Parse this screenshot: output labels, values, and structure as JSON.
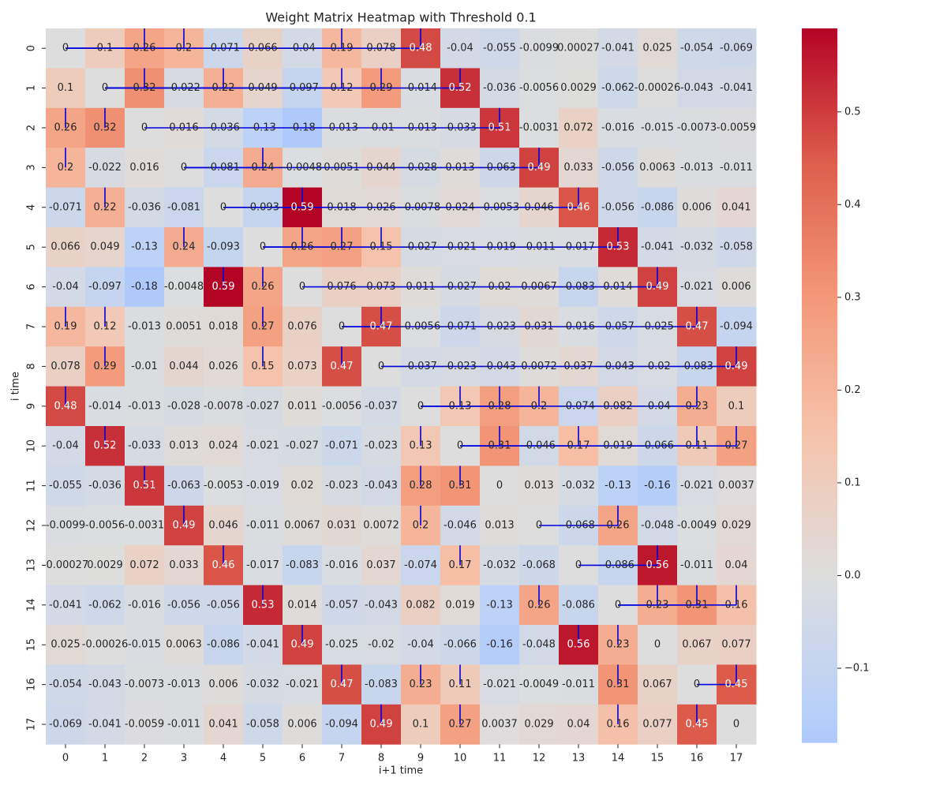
{
  "chart_data": {
    "type": "heatmap",
    "title": "Weight Matrix Heatmap with Threshold 0.1",
    "xlabel": "i+1 time",
    "ylabel": "i time",
    "x_ticks": [
      "0",
      "1",
      "2",
      "3",
      "4",
      "5",
      "6",
      "7",
      "8",
      "9",
      "10",
      "11",
      "12",
      "13",
      "14",
      "15",
      "16",
      "17"
    ],
    "y_ticks": [
      "0",
      "1",
      "2",
      "3",
      "4",
      "5",
      "6",
      "7",
      "8",
      "9",
      "10",
      "11",
      "12",
      "13",
      "14",
      "15",
      "16",
      "17"
    ],
    "colormap": "coolwarm",
    "color_range": [
      -0.18,
      0.59
    ],
    "colorbar_ticks": [
      {
        "value": -0.1,
        "label": "−0.1"
      },
      {
        "value": 0.0,
        "label": "0.0"
      },
      {
        "value": 0.1,
        "label": "0.1"
      },
      {
        "value": 0.2,
        "label": "0.2"
      },
      {
        "value": 0.3,
        "label": "0.3"
      },
      {
        "value": 0.4,
        "label": "0.4"
      },
      {
        "value": 0.5,
        "label": "0.5"
      }
    ],
    "cells": [
      [
        "0",
        "0.1",
        "0.26",
        "0.2",
        "-0.071",
        "0.066",
        "-0.04",
        "0.19",
        "0.078",
        "0.48",
        "-0.04",
        "-0.055",
        "-0.0099",
        "0.00027",
        "-0.041",
        "0.025",
        "-0.054",
        "-0.069"
      ],
      [
        "0.1",
        "0",
        "0.32",
        "-0.022",
        "0.22",
        "0.049",
        "-0.097",
        "0.12",
        "0.29",
        "-0.014",
        "0.52",
        "-0.036",
        "-0.0056",
        "0.0029",
        "-0.062",
        "-0.00026",
        "-0.043",
        "-0.041"
      ],
      [
        "0.26",
        "0.32",
        "0",
        "0.016",
        "-0.036",
        "-0.13",
        "-0.18",
        "-0.013",
        "-0.01",
        "-0.013",
        "-0.033",
        "0.51",
        "-0.0031",
        "0.072",
        "-0.016",
        "-0.015",
        "-0.0073",
        "-0.0059"
      ],
      [
        "0.2",
        "-0.022",
        "0.016",
        "0",
        "-0.081",
        "0.24",
        "-0.0048",
        "0.0051",
        "0.044",
        "-0.028",
        "0.013",
        "-0.063",
        "0.49",
        "0.033",
        "-0.056",
        "0.0063",
        "-0.013",
        "-0.011"
      ],
      [
        "-0.071",
        "0.22",
        "-0.036",
        "-0.081",
        "0",
        "-0.093",
        "0.59",
        "0.018",
        "0.026",
        "-0.0078",
        "0.024",
        "-0.0053",
        "0.046",
        "0.46",
        "-0.056",
        "-0.086",
        "0.006",
        "0.041"
      ],
      [
        "0.066",
        "0.049",
        "-0.13",
        "0.24",
        "-0.093",
        "0",
        "0.26",
        "0.27",
        "0.15",
        "-0.027",
        "-0.021",
        "-0.019",
        "-0.011",
        "-0.017",
        "0.53",
        "-0.041",
        "-0.032",
        "-0.058"
      ],
      [
        "-0.04",
        "-0.097",
        "-0.18",
        "-0.0048",
        "0.59",
        "0.26",
        "0",
        "0.076",
        "0.073",
        "0.011",
        "-0.027",
        "0.02",
        "0.0067",
        "-0.083",
        "0.014",
        "0.49",
        "-0.021",
        "0.006"
      ],
      [
        "0.19",
        "0.12",
        "-0.013",
        "0.0051",
        "0.018",
        "0.27",
        "0.076",
        "0",
        "0.47",
        "-0.0056",
        "-0.071",
        "-0.023",
        "0.031",
        "-0.016",
        "-0.057",
        "-0.025",
        "0.47",
        "-0.094"
      ],
      [
        "0.078",
        "0.29",
        "-0.01",
        "0.044",
        "0.026",
        "0.15",
        "0.073",
        "0.47",
        "0",
        "-0.037",
        "-0.023",
        "-0.043",
        "0.0072",
        "0.037",
        "-0.043",
        "-0.02",
        "-0.083",
        "0.49"
      ],
      [
        "0.48",
        "-0.014",
        "-0.013",
        "-0.028",
        "-0.0078",
        "-0.027",
        "0.011",
        "-0.0056",
        "-0.037",
        "0",
        "0.13",
        "0.28",
        "0.2",
        "-0.074",
        "0.082",
        "-0.04",
        "0.23",
        "0.1"
      ],
      [
        "-0.04",
        "0.52",
        "-0.033",
        "0.013",
        "0.024",
        "-0.021",
        "-0.027",
        "-0.071",
        "-0.023",
        "0.13",
        "0",
        "0.31",
        "-0.046",
        "0.17",
        "0.019",
        "-0.066",
        "0.11",
        "0.27"
      ],
      [
        "-0.055",
        "-0.036",
        "0.51",
        "-0.063",
        "-0.0053",
        "-0.019",
        "0.02",
        "-0.023",
        "-0.043",
        "0.28",
        "0.31",
        "0",
        "0.013",
        "-0.032",
        "-0.13",
        "-0.16",
        "-0.021",
        "0.0037"
      ],
      [
        "-0.0099",
        "-0.0056",
        "-0.0031",
        "0.49",
        "0.046",
        "-0.011",
        "0.0067",
        "0.031",
        "0.0072",
        "0.2",
        "-0.046",
        "0.013",
        "0",
        "-0.068",
        "0.26",
        "-0.048",
        "-0.0049",
        "0.029"
      ],
      [
        "-0.00027",
        "0.0029",
        "0.072",
        "0.033",
        "0.46",
        "-0.017",
        "-0.083",
        "-0.016",
        "0.037",
        "-0.074",
        "0.17",
        "-0.032",
        "-0.068",
        "0",
        "-0.086",
        "0.56",
        "-0.011",
        "0.04"
      ],
      [
        "-0.041",
        "-0.062",
        "-0.016",
        "-0.056",
        "-0.056",
        "0.53",
        "0.014",
        "-0.057",
        "-0.043",
        "0.082",
        "0.019",
        "-0.13",
        "0.26",
        "-0.086",
        "0",
        "0.23",
        "0.31",
        "0.16"
      ],
      [
        "0.025",
        "-0.00026",
        "-0.015",
        "0.0063",
        "-0.086",
        "-0.041",
        "0.49",
        "-0.025",
        "-0.02",
        "-0.04",
        "-0.066",
        "-0.16",
        "-0.048",
        "0.56",
        "0.23",
        "0",
        "0.067",
        "0.077"
      ],
      [
        "-0.054",
        "-0.043",
        "-0.0073",
        "-0.013",
        "0.006",
        "-0.032",
        "-0.021",
        "0.47",
        "-0.083",
        "0.23",
        "0.11",
        "-0.021",
        "-0.0049",
        "-0.011",
        "0.31",
        "0.067",
        "0",
        "0.45"
      ],
      [
        "-0.069",
        "-0.041",
        "-0.0059",
        "-0.011",
        "0.041",
        "-0.058",
        "0.006",
        "-0.094",
        "0.49",
        "0.1",
        "0.27",
        "0.0037",
        "0.029",
        "0.04",
        "0.16",
        "0.077",
        "0.45",
        "0"
      ]
    ],
    "threshold": 0.1,
    "connector_color": "#0000dd"
  }
}
